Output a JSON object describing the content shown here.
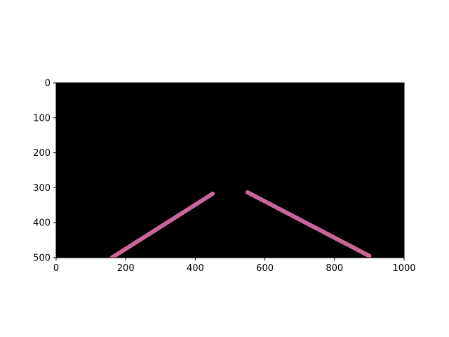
{
  "chart_data": {
    "type": "line",
    "title": "",
    "xlabel": "",
    "ylabel": "",
    "xlim": [
      0,
      1000
    ],
    "ylim": [
      500,
      0
    ],
    "y_axis_inverted": true,
    "x_ticks": [
      "0",
      "200",
      "400",
      "600",
      "800",
      "1000"
    ],
    "y_ticks": [
      "0",
      "100",
      "200",
      "300",
      "400",
      "500"
    ],
    "background_color": "#000000",
    "line_color": "#cc6699",
    "grid": false,
    "series": [
      {
        "x": [
          160,
          450
        ],
        "y": [
          500,
          317
        ]
      },
      {
        "x": [
          550,
          900
        ],
        "y": [
          313,
          495
        ]
      }
    ]
  }
}
